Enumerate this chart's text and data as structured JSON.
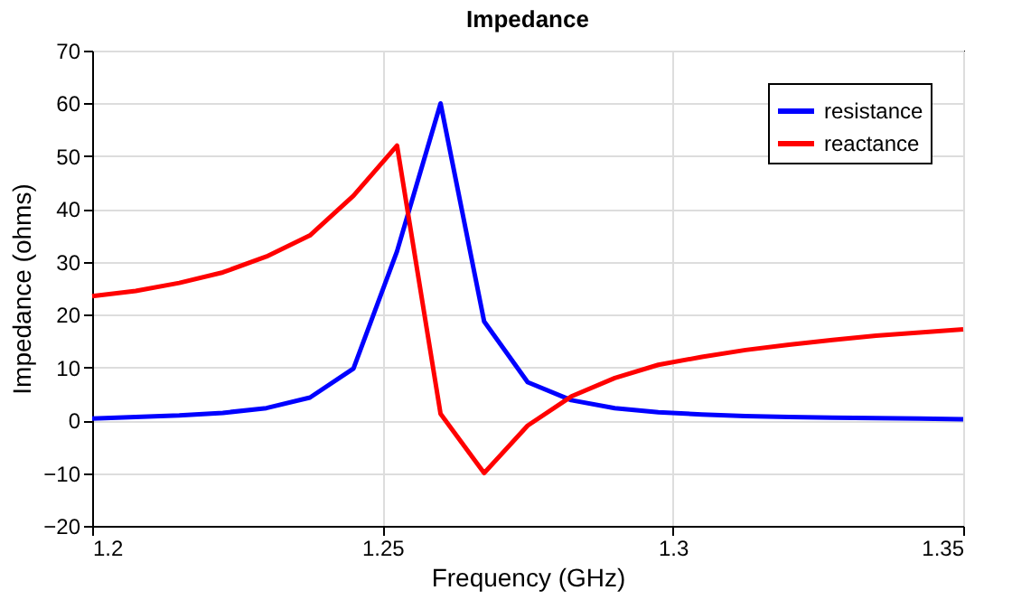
{
  "chart_data": {
    "type": "line",
    "title": "Impedance",
    "xlabel": "Frequency (GHz)",
    "ylabel": "Impedance (ohms)",
    "x": [
      1.2,
      1.2075,
      1.215,
      1.2225,
      1.23,
      1.2375,
      1.245,
      1.2525,
      1.26,
      1.2675,
      1.275,
      1.2825,
      1.29,
      1.2975,
      1.305,
      1.3125,
      1.32,
      1.3275,
      1.335,
      1.3425,
      1.35
    ],
    "series": [
      {
        "name": "resistance",
        "color": "#0000ff",
        "values": [
          0.3,
          0.6,
          0.9,
          1.4,
          2.3,
          4.3,
          9.8,
          32,
          60,
          18.7,
          7.2,
          3.8,
          2.3,
          1.5,
          1.1,
          0.8,
          0.6,
          0.5,
          0.4,
          0.3,
          0.2
        ]
      },
      {
        "name": "reactance",
        "color": "#ff0000",
        "values": [
          23.5,
          24.5,
          26,
          28,
          31,
          35,
          42.5,
          52,
          1.2,
          -10,
          -1,
          4.5,
          8,
          10.5,
          12,
          13.3,
          14.3,
          15.2,
          16,
          16.6,
          17.2
        ]
      }
    ],
    "xlim": [
      1.2,
      1.35
    ],
    "xticks": [
      1.2,
      1.25,
      1.3,
      1.35
    ],
    "ylim": [
      -20,
      70
    ],
    "yticks": [
      -20,
      -10,
      0,
      10,
      20,
      30,
      40,
      50,
      60,
      70
    ],
    "grid": true,
    "legend": "top right",
    "marker": "none",
    "line_style": "solid"
  }
}
